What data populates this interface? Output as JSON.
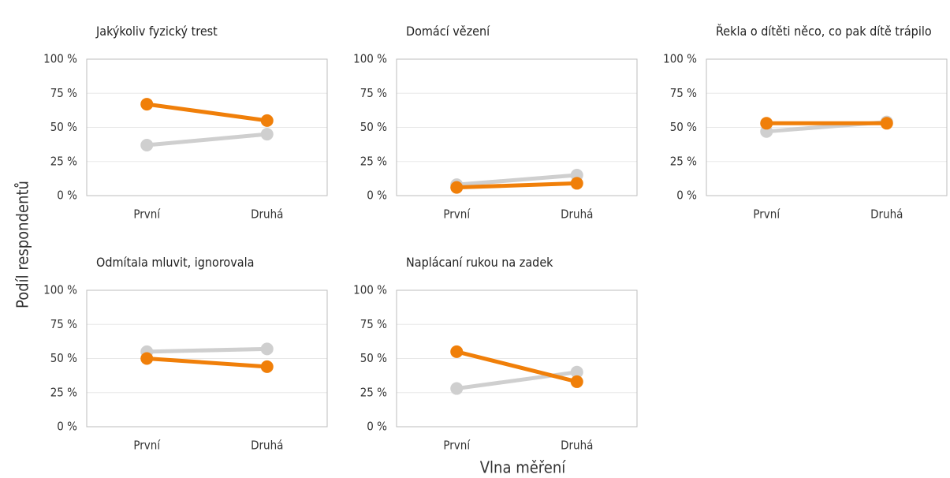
{
  "ylabel": "Podíl respondentů",
  "xlabel": "Vlna měření",
  "chart_data": [
    {
      "type": "line",
      "title": "Jakýkoliv fyzický trest",
      "categories": [
        "První",
        "Druhá"
      ],
      "series": [
        {
          "color": "#cfcfcf",
          "values": [
            37,
            45
          ]
        },
        {
          "color": "#f07f09",
          "values": [
            67,
            55
          ]
        }
      ],
      "ylim": [
        0,
        100
      ],
      "yticks": [
        {
          "value": 0,
          "label": "0 %"
        },
        {
          "value": 25,
          "label": "25 %"
        },
        {
          "value": 50,
          "label": "50 %"
        },
        {
          "value": 75,
          "label": "75 %"
        },
        {
          "value": 100,
          "label": "100 %"
        }
      ],
      "grid": true
    },
    {
      "type": "line",
      "title": "Domácí vězení",
      "categories": [
        "První",
        "Druhá"
      ],
      "series": [
        {
          "color": "#cfcfcf",
          "values": [
            8,
            15
          ]
        },
        {
          "color": "#f07f09",
          "values": [
            6,
            9
          ]
        }
      ],
      "ylim": [
        0,
        100
      ],
      "yticks": [
        {
          "value": 0,
          "label": "0 %"
        },
        {
          "value": 25,
          "label": "25 %"
        },
        {
          "value": 50,
          "label": "50 %"
        },
        {
          "value": 75,
          "label": "75 %"
        },
        {
          "value": 100,
          "label": "100 %"
        }
      ],
      "grid": true
    },
    {
      "type": "line",
      "title": "Řekla o dítěti něco, co pak dítě trápilo",
      "categories": [
        "První",
        "Druhá"
      ],
      "series": [
        {
          "color": "#cfcfcf",
          "values": [
            47,
            54
          ]
        },
        {
          "color": "#f07f09",
          "values": [
            53,
            53
          ]
        }
      ],
      "ylim": [
        0,
        100
      ],
      "yticks": [
        {
          "value": 0,
          "label": "0 %"
        },
        {
          "value": 25,
          "label": "25 %"
        },
        {
          "value": 50,
          "label": "50 %"
        },
        {
          "value": 75,
          "label": "75 %"
        },
        {
          "value": 100,
          "label": "100 %"
        }
      ],
      "grid": true
    },
    {
      "type": "line",
      "title": "Odmítala mluvit, ignorovala",
      "categories": [
        "První",
        "Druhá"
      ],
      "series": [
        {
          "color": "#cfcfcf",
          "values": [
            55,
            57
          ]
        },
        {
          "color": "#f07f09",
          "values": [
            50,
            44
          ]
        }
      ],
      "ylim": [
        0,
        100
      ],
      "yticks": [
        {
          "value": 0,
          "label": "0 %"
        },
        {
          "value": 25,
          "label": "25 %"
        },
        {
          "value": 50,
          "label": "50 %"
        },
        {
          "value": 75,
          "label": "75 %"
        },
        {
          "value": 100,
          "label": "100 %"
        }
      ],
      "grid": true
    },
    {
      "type": "line",
      "title": "Naplácaní rukou na zadek",
      "categories": [
        "První",
        "Druhá"
      ],
      "series": [
        {
          "color": "#cfcfcf",
          "values": [
            28,
            40
          ]
        },
        {
          "color": "#f07f09",
          "values": [
            55,
            33
          ]
        }
      ],
      "ylim": [
        0,
        100
      ],
      "yticks": [
        {
          "value": 0,
          "label": "0 %"
        },
        {
          "value": 25,
          "label": "25 %"
        },
        {
          "value": 50,
          "label": "50 %"
        },
        {
          "value": 75,
          "label": "75 %"
        },
        {
          "value": 100,
          "label": "100 %"
        }
      ],
      "grid": true
    }
  ]
}
